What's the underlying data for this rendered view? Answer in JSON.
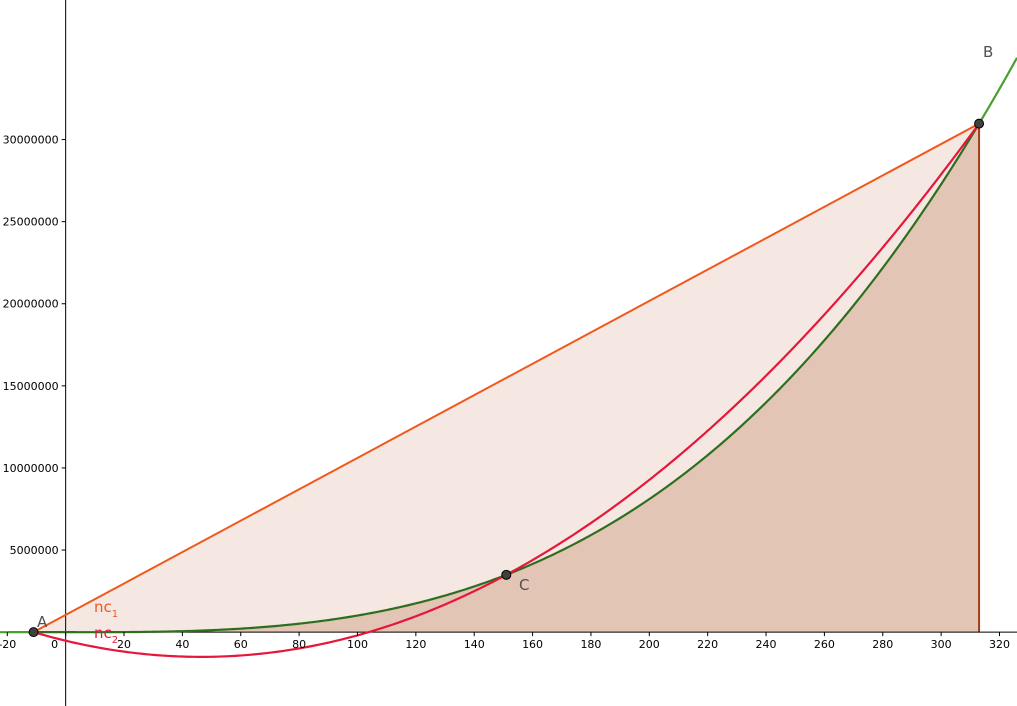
{
  "chart_data": {
    "type": "line",
    "title": "",
    "xlabel": "",
    "ylabel": "",
    "xlim": [
      -22.5,
      326
    ],
    "ylim": [
      -4500000,
      38500000
    ],
    "x_ticks": [
      -20,
      0,
      20,
      40,
      60,
      80,
      100,
      120,
      140,
      160,
      180,
      200,
      220,
      240,
      260,
      280,
      300,
      320
    ],
    "x_tick_labels": [
      "-20",
      "0",
      "20",
      "40",
      "60",
      "80",
      "100",
      "120",
      "140",
      "160",
      "180",
      "200",
      "220",
      "240",
      "260",
      "280",
      "300",
      "320"
    ],
    "y_ticks": [
      5000000,
      10000000,
      15000000,
      20000000,
      25000000,
      30000000
    ],
    "y_tick_labels": [
      "5000000",
      "10000000",
      "15000000",
      "20000000",
      "25000000",
      "30000000"
    ],
    "grid": false,
    "colors": {
      "cubic": "#2e6f1e",
      "cubic_ext": "#49a02c",
      "chord": "#f0581c",
      "parabola": "#e5173a",
      "point": "#404040",
      "region_light": "#f5e8e3",
      "region_dark": "#e3c5b6",
      "region_edge": "#a0401a",
      "label_gray": "#505050"
    },
    "points": [
      {
        "label": "A",
        "x": -11,
        "y": 0
      },
      {
        "label": "B",
        "x": 313,
        "y": 30970000
      },
      {
        "label": "C",
        "x": 151,
        "y": 3490000
      }
    ],
    "series": [
      {
        "name": "cubic",
        "kind": "cubic",
        "coef": [
          1,
          -0.006,
          -2e-05,
          0.0
        ],
        "domain": [
          -22.5,
          326
        ]
      },
      {
        "name": "nc1",
        "kind": "line",
        "from": [
          -11,
          0
        ],
        "to": [
          313,
          30970000
        ]
      },
      {
        "name": "nc2",
        "kind": "parabola",
        "vertex": [
          47,
          -1490000
        ],
        "through": [
          -11,
          0
        ],
        "domain": [
          -11,
          313
        ]
      }
    ],
    "labels": {
      "A": "A",
      "B": "B",
      "C": "C",
      "nc1": "nc",
      "nc1_sub": "1",
      "nc2": "nc",
      "nc2_sub": "2"
    }
  }
}
